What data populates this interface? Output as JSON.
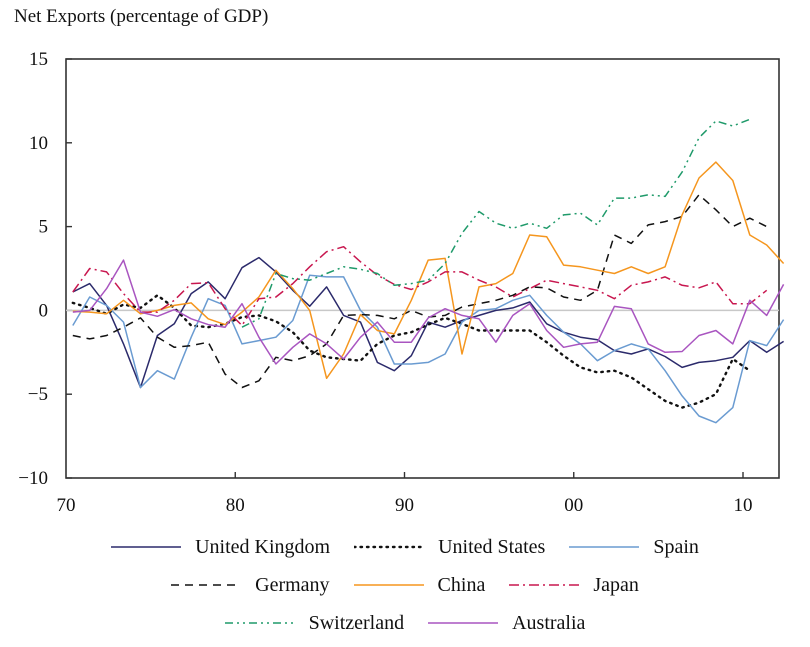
{
  "chart_data": {
    "type": "line",
    "title": "Net Exports (percentage of GDP)",
    "xlabel": "",
    "ylabel": "",
    "xlim": [
      1970,
      2012
    ],
    "ylim": [
      -10,
      15
    ],
    "xticks": [
      1970,
      1980,
      1990,
      2000,
      2010
    ],
    "xtick_labels": [
      "70",
      "80",
      "90",
      "00",
      "10"
    ],
    "yticks": [
      15,
      10,
      5,
      0,
      -5,
      -10
    ],
    "ytick_labels": [
      "15",
      "10",
      "5",
      "0",
      "−5",
      "−10"
    ],
    "zero_line": true,
    "grid": false,
    "legend_position": "bottom",
    "series": [
      {
        "name": "United Kingdom",
        "color": "#2b2a6b",
        "dash": "solid",
        "start": 1970,
        "values": [
          1.1,
          1.6,
          0.3,
          -2.0,
          -4.6,
          -1.5,
          -0.8,
          1.0,
          1.7,
          0.7,
          2.55,
          3.15,
          2.3,
          1.2,
          0.25,
          1.4,
          -0.3,
          -0.7,
          -3.1,
          -3.6,
          -2.7,
          -0.7,
          -1.0,
          -0.6,
          -0.3,
          0.0,
          0.15,
          0.5,
          -0.8,
          -1.3,
          -1.6,
          -1.75,
          -2.4,
          -2.6,
          -2.3,
          -2.75,
          -3.4,
          -3.1,
          -3.0,
          -2.8,
          -1.8,
          -2.5,
          -1.85
        ]
      },
      {
        "name": "United States",
        "color": "#111111",
        "dash": "dot",
        "start": 1970,
        "values": [
          0.45,
          0.15,
          -0.2,
          0.35,
          0.15,
          0.9,
          0.15,
          -0.9,
          -1.0,
          -0.8,
          -0.4,
          -0.3,
          -0.65,
          -1.3,
          -2.4,
          -2.8,
          -2.9,
          -3.0,
          -2.0,
          -1.5,
          -1.3,
          -0.85,
          -0.45,
          -0.8,
          -1.2,
          -1.2,
          -1.2,
          -1.2,
          -1.9,
          -2.7,
          -3.4,
          -3.7,
          -3.6,
          -4.0,
          -4.7,
          -5.4,
          -5.8,
          -5.5,
          -5.0,
          -2.9,
          -3.6
        ]
      },
      {
        "name": "Spain",
        "color": "#6a9bd1",
        "dash": "solid",
        "start": 1970,
        "values": [
          -0.9,
          0.8,
          0.3,
          -0.7,
          -4.6,
          -3.6,
          -4.1,
          -1.6,
          0.7,
          0.3,
          -2.0,
          -1.8,
          -1.6,
          -0.6,
          2.1,
          2.0,
          2.0,
          0.0,
          -1.0,
          -3.2,
          -3.2,
          -3.1,
          -2.6,
          -0.7,
          0.0,
          0.1,
          0.6,
          0.9,
          -0.3,
          -1.3,
          -2.0,
          -3.0,
          -2.4,
          -2.0,
          -2.3,
          -3.6,
          -5.1,
          -6.3,
          -6.7,
          -5.8,
          -1.8,
          -2.1,
          -0.55
        ]
      },
      {
        "name": "Germany",
        "color": "#111111",
        "dash": "dash",
        "start": 1970,
        "values": [
          -1.5,
          -1.7,
          -1.5,
          -1.0,
          -0.45,
          -1.6,
          -2.2,
          -2.1,
          -1.9,
          -3.8,
          -4.6,
          -4.2,
          -2.8,
          -3.0,
          -2.7,
          -2.0,
          -0.3,
          -0.25,
          -0.3,
          -0.5,
          0.0,
          -0.4,
          -0.3,
          0.2,
          0.4,
          0.6,
          0.9,
          1.4,
          1.35,
          0.8,
          0.6,
          1.2,
          4.5,
          4.0,
          5.1,
          5.3,
          5.6,
          6.9,
          6.0,
          5.0,
          5.5,
          5.0
        ]
      },
      {
        "name": "China",
        "color": "#f5961e",
        "dash": "solid",
        "start": 1970,
        "values": [
          -0.05,
          -0.1,
          -0.2,
          0.6,
          -0.2,
          0.0,
          0.3,
          0.45,
          -0.5,
          -0.85,
          -0.1,
          0.8,
          2.4,
          1.3,
          0.0,
          -4.05,
          -2.6,
          -0.25,
          -1.2,
          -1.4,
          0.6,
          3.0,
          3.1,
          -2.6,
          1.4,
          1.6,
          2.2,
          4.5,
          4.4,
          2.7,
          2.6,
          2.4,
          2.2,
          2.6,
          2.2,
          2.6,
          5.7,
          7.9,
          8.85,
          7.75,
          4.5,
          3.9,
          2.8
        ]
      },
      {
        "name": "Japan",
        "color": "#c8174f",
        "dash": "dashdot",
        "start": 1970,
        "values": [
          1.1,
          2.5,
          2.3,
          1.0,
          -0.1,
          -0.1,
          0.6,
          1.6,
          1.65,
          0.1,
          -0.9,
          0.7,
          0.8,
          1.6,
          2.6,
          3.5,
          3.8,
          2.9,
          2.1,
          1.55,
          1.25,
          1.7,
          2.3,
          2.3,
          1.8,
          1.4,
          0.8,
          1.3,
          1.8,
          1.6,
          1.4,
          1.2,
          0.7,
          1.5,
          1.7,
          2.0,
          1.5,
          1.35,
          1.7,
          0.4,
          0.4,
          1.2
        ]
      },
      {
        "name": "Switzerland",
        "color": "#1f9a6a",
        "dash": "dashdotdot",
        "start": 1980,
        "values": [
          -1.0,
          -0.5,
          2.2,
          1.9,
          1.8,
          2.2,
          2.6,
          2.45,
          2.2,
          1.5,
          1.6,
          1.8,
          2.8,
          4.6,
          5.9,
          5.2,
          4.9,
          5.2,
          4.9,
          5.7,
          5.8,
          5.1,
          6.7,
          6.7,
          6.9,
          6.8,
          8.25,
          10.3,
          11.3,
          11.0,
          11.4
        ]
      },
      {
        "name": "Australia",
        "color": "#a955c0",
        "dash": "solid",
        "start": 1970,
        "values": [
          -0.1,
          0.0,
          1.3,
          3.0,
          -0.1,
          -0.35,
          0.05,
          -0.5,
          -0.85,
          -1.0,
          0.4,
          -1.6,
          -3.2,
          -2.2,
          -1.4,
          -2.0,
          -2.9,
          -1.6,
          -0.7,
          -1.9,
          -1.9,
          -0.45,
          0.1,
          -0.3,
          -0.5,
          -1.9,
          -0.3,
          0.4,
          -1.2,
          -2.2,
          -2.0,
          -1.9,
          0.24,
          0.1,
          -2.0,
          -2.5,
          -2.45,
          -1.5,
          -1.2,
          -2.0,
          0.6,
          -0.3,
          1.55
        ]
      }
    ]
  },
  "legend": {
    "rows": [
      [
        "United Kingdom",
        "United States",
        "Spain"
      ],
      [
        "Germany",
        "China",
        "Japan"
      ],
      [
        "Switzerland",
        "Australia"
      ]
    ]
  }
}
